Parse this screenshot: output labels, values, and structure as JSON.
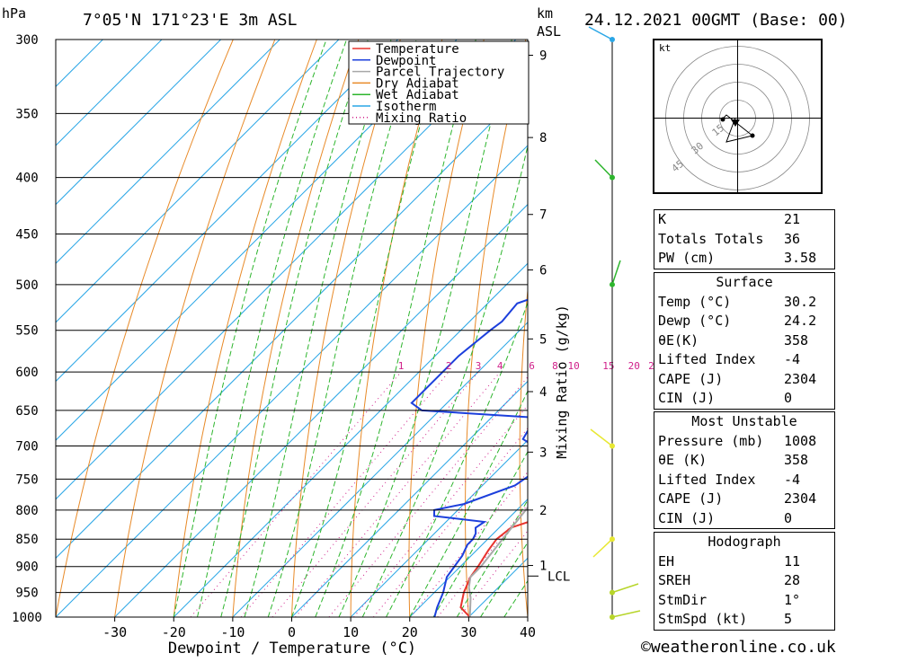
{
  "header": {
    "location": "7°05'N  171°23'E  3m  ASL",
    "datetime": "24.12.2021  00GMT  (Base: 00)",
    "p_unit": "hPa",
    "km_unit": "km",
    "asl": "ASL"
  },
  "chart_data": {
    "type": "line",
    "title": "",
    "xlabel": "Dewpoint / Temperature (°C)",
    "ylabel": "hPa",
    "right_label": "Mixing Ratio (g/kg)",
    "xlim": [
      -40,
      40
    ],
    "ylim": [
      1000,
      300
    ],
    "skew_deg_per_100hPa_at_bottom": 0,
    "x_ticks": [
      -30,
      -20,
      -10,
      0,
      10,
      20,
      30,
      40
    ],
    "pressure_levels": [
      300,
      350,
      400,
      450,
      500,
      550,
      600,
      650,
      700,
      750,
      800,
      850,
      900,
      950,
      1000
    ],
    "km_ticks": [
      {
        "km": 9,
        "p": 310
      },
      {
        "km": 8,
        "p": 368
      },
      {
        "km": 7,
        "p": 432
      },
      {
        "km": 6,
        "p": 485
      },
      {
        "km": 5,
        "p": 560
      },
      {
        "km": 4,
        "p": 625
      },
      {
        "km": 3,
        "p": 709
      },
      {
        "km": 2,
        "p": 800
      },
      {
        "km": 1,
        "p": 898
      }
    ],
    "lcl": {
      "label": "LCL",
      "p": 918
    },
    "mixing_ratio_labels": [
      "1",
      "2",
      "3",
      "4",
      "6",
      "8",
      "10",
      "15",
      "20",
      "25"
    ],
    "mixing_ratio_values": [
      1,
      2,
      3,
      4,
      6,
      8,
      10,
      15,
      20,
      25
    ],
    "legend": [
      {
        "name": "Temperature",
        "color": "#e8332d",
        "style": "solid"
      },
      {
        "name": "Dewpoint",
        "color": "#1c3fdc",
        "style": "solid"
      },
      {
        "name": "Parcel Trajectory",
        "color": "#a8a8a8",
        "style": "solid"
      },
      {
        "name": "Dry Adiabat",
        "color": "#e88a28",
        "style": "solid"
      },
      {
        "name": "Wet Adiabat",
        "color": "#2db52d",
        "style": "solid"
      },
      {
        "name": "Isotherm",
        "color": "#2aa6e6",
        "style": "solid"
      },
      {
        "name": "Mixing Ratio",
        "color": "#d0208a",
        "style": "dotted"
      }
    ],
    "series": [
      {
        "name": "Temperature",
        "color": "#e8332d",
        "points": [
          [
            1000,
            30.2
          ],
          [
            980,
            27
          ],
          [
            950,
            25
          ],
          [
            920,
            23.5
          ],
          [
            900,
            23
          ],
          [
            870,
            22
          ],
          [
            850,
            21.5
          ],
          [
            830,
            22
          ],
          [
            820,
            24
          ],
          [
            800,
            25.5
          ],
          [
            770,
            24
          ],
          [
            750,
            23
          ],
          [
            720,
            21.5
          ],
          [
            700,
            23
          ],
          [
            680,
            22.5
          ],
          [
            660,
            21
          ],
          [
            640,
            21
          ],
          [
            620,
            20
          ],
          [
            600,
            18.5
          ],
          [
            560,
            16
          ],
          [
            530,
            14
          ],
          [
            500,
            13
          ],
          [
            475,
            10
          ],
          [
            450,
            7.5
          ],
          [
            420,
            6
          ],
          [
            400,
            6.5
          ],
          [
            370,
            4.5
          ],
          [
            345,
            2
          ],
          [
            330,
            1
          ],
          [
            310,
            -2
          ],
          [
            300,
            -3
          ]
        ]
      },
      {
        "name": "Dewpoint",
        "color": "#1c3fdc",
        "points": [
          [
            1000,
            24.2
          ],
          [
            980,
            23
          ],
          [
            950,
            21.5
          ],
          [
            920,
            19.5
          ],
          [
            900,
            19
          ],
          [
            880,
            18.5
          ],
          [
            860,
            17.5
          ],
          [
            850,
            17.5
          ],
          [
            840,
            17
          ],
          [
            830,
            16
          ],
          [
            820,
            16.5
          ],
          [
            810,
            7
          ],
          [
            800,
            6
          ],
          [
            790,
            10
          ],
          [
            760,
            15.5
          ],
          [
            740,
            16.5
          ],
          [
            720,
            17.5
          ],
          [
            710,
            16
          ],
          [
            700,
            12
          ],
          [
            690,
            9
          ],
          [
            670,
            8
          ],
          [
            660,
            8
          ],
          [
            650,
            -13
          ],
          [
            640,
            -16
          ],
          [
            600,
            -16
          ],
          [
            580,
            -16
          ],
          [
            550,
            -15
          ],
          [
            540,
            -14.5
          ],
          [
            520,
            -15
          ],
          [
            510,
            -12
          ],
          [
            505,
            -5
          ],
          [
            500,
            -3
          ],
          [
            490,
            -2
          ],
          [
            470,
            -1
          ],
          [
            450,
            -4
          ],
          [
            420,
            -8
          ],
          [
            400,
            -15
          ],
          [
            390,
            -25
          ],
          [
            380,
            -27
          ],
          [
            370,
            -25
          ],
          [
            360,
            -22
          ],
          [
            355,
            -8
          ],
          [
            350,
            -10
          ],
          [
            345,
            -14
          ],
          [
            335,
            -17
          ],
          [
            325,
            -23
          ],
          [
            310,
            -15
          ],
          [
            300,
            -15.5
          ]
        ]
      },
      {
        "name": "Parcel Trajectory",
        "color": "#a8a8a8",
        "points": [
          [
            1000,
            30.2
          ],
          [
            960,
            27
          ],
          [
            940,
            25
          ],
          [
            920,
            23.5
          ],
          [
            900,
            23.5
          ],
          [
            850,
            22.5
          ],
          [
            800,
            21.5
          ],
          [
            750,
            20.5
          ],
          [
            700,
            19.5
          ],
          [
            650,
            18.5
          ],
          [
            600,
            17.5
          ],
          [
            550,
            16
          ],
          [
            500,
            14
          ],
          [
            450,
            11
          ],
          [
            400,
            8
          ],
          [
            350,
            4
          ],
          [
            300,
            -1
          ]
        ]
      }
    ]
  },
  "hodograph": {
    "unit": "kt",
    "rings": [
      "15",
      "30",
      "45"
    ]
  },
  "indices": {
    "basic": [
      {
        "label": "K",
        "value": "21"
      },
      {
        "label": "Totals Totals",
        "value": "36"
      },
      {
        "label": "PW (cm)",
        "value": "3.58"
      }
    ],
    "surface": {
      "title": "Surface",
      "rows": [
        {
          "label": "Temp (°C)",
          "value": "30.2"
        },
        {
          "label": "Dewp (°C)",
          "value": "24.2"
        },
        {
          "label": "θE(K)",
          "value": "358"
        },
        {
          "label": "Lifted Index",
          "value": "-4"
        },
        {
          "label": "CAPE (J)",
          "value": "2304"
        },
        {
          "label": "CIN (J)",
          "value": "0"
        }
      ]
    },
    "most_unstable": {
      "title": "Most Unstable",
      "rows": [
        {
          "label": "Pressure (mb)",
          "value": "1008"
        },
        {
          "label": "θE (K)",
          "value": "358"
        },
        {
          "label": "Lifted Index",
          "value": "-4"
        },
        {
          "label": "CAPE (J)",
          "value": "2304"
        },
        {
          "label": "CIN (J)",
          "value": "0"
        }
      ]
    },
    "hodograph": {
      "title": "Hodograph",
      "rows": [
        {
          "label": "EH",
          "value": "11"
        },
        {
          "label": "SREH",
          "value": "28"
        },
        {
          "label": "StmDir",
          "value": "1°"
        },
        {
          "label": "StmSpd (kt)",
          "value": "5"
        }
      ]
    }
  },
  "footer": {
    "copyright": "©weatheronline.co.uk"
  }
}
